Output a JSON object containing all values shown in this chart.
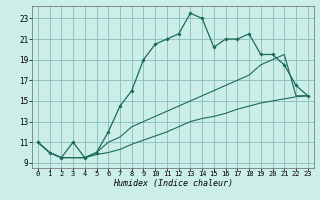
{
  "title": "",
  "xlabel": "Humidex (Indice chaleur)",
  "background_color": "#cceee8",
  "grid_color": "#88bbbb",
  "line_color": "#1a6b5a",
  "xlim": [
    -0.5,
    23.5
  ],
  "ylim": [
    8.5,
    24.2
  ],
  "xticks": [
    0,
    1,
    2,
    3,
    4,
    5,
    6,
    7,
    8,
    9,
    10,
    11,
    12,
    13,
    14,
    15,
    16,
    17,
    18,
    19,
    20,
    21,
    22,
    23
  ],
  "yticks": [
    9,
    11,
    13,
    15,
    17,
    19,
    21,
    23
  ],
  "main_y": [
    11,
    10,
    9.5,
    11,
    9.5,
    10,
    12,
    14.5,
    16,
    19,
    20.5,
    21,
    21.5,
    23.5,
    23,
    20.2,
    21,
    21,
    21.5,
    19.5,
    19.5,
    18.5,
    16.5,
    15.5
  ],
  "line2_y": [
    11,
    10,
    9.5,
    9.5,
    9.5,
    10,
    11,
    11.5,
    12.5,
    13,
    13.5,
    14,
    14.5,
    15,
    15.5,
    16,
    16.5,
    17,
    17.5,
    18.5,
    19,
    19.5,
    15.5,
    15.5
  ],
  "line3_y": [
    11,
    10,
    9.5,
    9.5,
    9.5,
    9.8,
    10,
    10.3,
    10.8,
    11.2,
    11.6,
    12,
    12.5,
    13,
    13.3,
    13.5,
    13.8,
    14.2,
    14.5,
    14.8,
    15,
    15.2,
    15.4,
    15.5
  ],
  "x": [
    0,
    1,
    2,
    3,
    4,
    5,
    6,
    7,
    8,
    9,
    10,
    11,
    12,
    13,
    14,
    15,
    16,
    17,
    18,
    19,
    20,
    21,
    22,
    23
  ]
}
